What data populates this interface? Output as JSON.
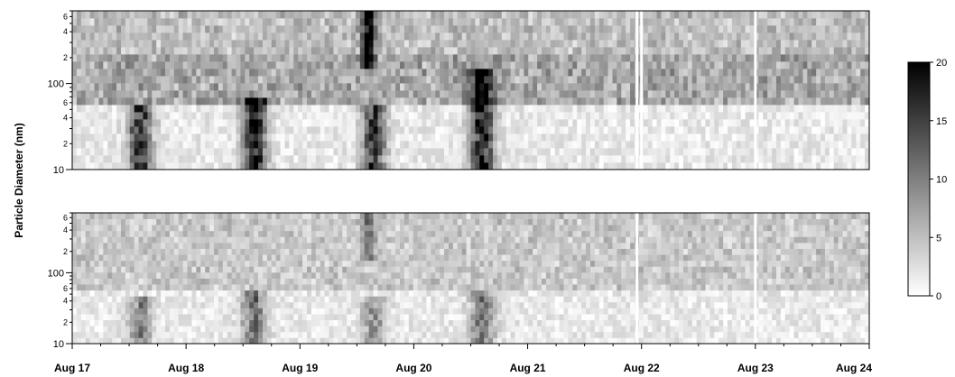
{
  "chart_data": {
    "type": "heatmap",
    "ylabel": "Particle Diameter (nm)",
    "x_ticks": [
      "Aug 17",
      "Aug 18",
      "Aug 19",
      "Aug 20",
      "Aug 21",
      "Aug 22",
      "Aug 23",
      "Aug 24"
    ],
    "xlim": [
      "Aug 17",
      "Aug 24"
    ],
    "y_scale": "log",
    "ylim": [
      10,
      700
    ],
    "y_major_ticks": [
      {
        "value": 10,
        "label": "10"
      },
      {
        "value": 100,
        "label": "100"
      }
    ],
    "y_minor_labels": [
      {
        "value": 20,
        "label": "2"
      },
      {
        "value": 40,
        "label": "4"
      },
      {
        "value": 60,
        "label": "6"
      },
      {
        "value": 200,
        "label": "2"
      },
      {
        "value": 400,
        "label": "4"
      },
      {
        "value": 600,
        "label": "6"
      }
    ],
    "colorbar": {
      "min": 0,
      "max": 20,
      "ticks": [
        "0",
        "5",
        "10",
        "15",
        "20"
      ],
      "colormap": "white-to-black"
    },
    "panels": [
      {
        "name": "top",
        "blank_days": [
          4.96,
          5.0,
          6.0
        ],
        "events": [
          {
            "day": 0.6,
            "width": 0.1,
            "d_lo": 10,
            "d_hi": 60,
            "peak": 17
          },
          {
            "day": 1.6,
            "width": 0.1,
            "d_lo": 10,
            "d_hi": 70,
            "peak": 20
          },
          {
            "day": 2.6,
            "width": 0.06,
            "d_lo": 150,
            "d_hi": 700,
            "peak": 20
          },
          {
            "day": 2.65,
            "width": 0.1,
            "d_lo": 10,
            "d_hi": 60,
            "peak": 16
          },
          {
            "day": 3.6,
            "width": 0.1,
            "d_lo": 10,
            "d_hi": 150,
            "peak": 20
          }
        ],
        "bands": [
          {
            "d_lo": 60,
            "d_hi": 200,
            "level": 6
          },
          {
            "d_lo": 200,
            "d_hi": 700,
            "level": 4
          }
        ]
      },
      {
        "name": "bottom",
        "blank_days": [
          4.96,
          6.0
        ],
        "events": [
          {
            "day": 0.6,
            "width": 0.1,
            "d_lo": 10,
            "d_hi": 50,
            "peak": 9
          },
          {
            "day": 1.6,
            "width": 0.1,
            "d_lo": 10,
            "d_hi": 60,
            "peak": 11
          },
          {
            "day": 2.6,
            "width": 0.06,
            "d_lo": 150,
            "d_hi": 700,
            "peak": 9
          },
          {
            "day": 2.65,
            "width": 0.1,
            "d_lo": 10,
            "d_hi": 50,
            "peak": 8
          },
          {
            "day": 3.6,
            "width": 0.1,
            "d_lo": 10,
            "d_hi": 60,
            "peak": 11
          }
        ],
        "bands": [
          {
            "d_lo": 60,
            "d_hi": 700,
            "level": 3
          }
        ]
      }
    ]
  }
}
